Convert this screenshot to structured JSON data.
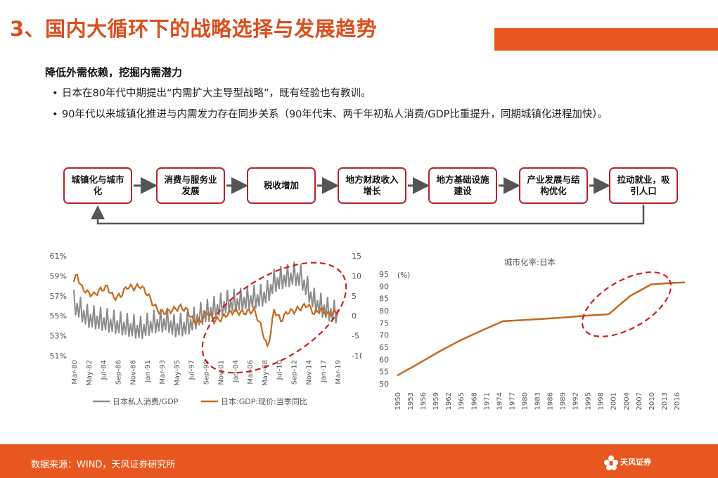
{
  "header": {
    "title": "3、国内大循环下的战略选择与发展趋势",
    "subtitle": "降低外需依赖，挖掘内需潜力",
    "bullets": [
      "日本在80年代中期提出“内需扩大主导型战略”，既有经验也有教训。",
      "90年代以来城镇化推进与内需发力存在同步关系（90年代末、两千年初私人消费/GDP比重提升，同期城镇化进程加快）。"
    ],
    "bullet_marker": "•"
  },
  "flow": {
    "steps": [
      "城镇化与城市化",
      "消费与服务业发展",
      "税收增加",
      "地方财政收入增长",
      "地方基础设施建设",
      "产业发展与结构优化",
      "拉动就业，吸引人口"
    ]
  },
  "footer": {
    "source": "数据来源：WIND，天风证券研究所",
    "logo_text": "天风证券",
    "colors": {
      "brand": "#e8571f"
    }
  },
  "chart_data": [
    {
      "type": "line",
      "x_tick_labels": [
        "Mar-80",
        "May-82",
        "Jul-84",
        "Sep-86",
        "Nov-88",
        "Jan-91",
        "Mar-93",
        "May-95",
        "Jul-97",
        "Sep-99",
        "Nov-01",
        "Jan-04",
        "Mar-06",
        "May-08",
        "Jul-10",
        "Sep-12",
        "Nov-14",
        "Jan-17",
        "Mar-19"
      ],
      "y_left": {
        "ticks": [
          "61%",
          "59%",
          "57%",
          "55%",
          "53%",
          "51%"
        ],
        "range": [
          51,
          61
        ]
      },
      "y_right": {
        "ticks": [
          "15",
          "10",
          "5",
          "0",
          "-5",
          "-10"
        ],
        "range": [
          -10,
          15
        ]
      },
      "series": [
        {
          "name": "日本私人消费/GDP",
          "axis": "left",
          "color": "#8c8c8c",
          "t": [
            1980,
            1982,
            1984,
            1986,
            1988,
            1990,
            1992,
            1994,
            1995,
            1997,
            1999,
            2001,
            2003,
            2005,
            2007,
            2008,
            2009,
            2010,
            2011,
            2012,
            2013,
            2014,
            2015,
            2016,
            2017,
            2018,
            2019
          ],
          "values": [
            56.2,
            54.8,
            54.5,
            54.2,
            53.9,
            53.6,
            54.2,
            54.4,
            53.8,
            54.0,
            55.0,
            55.6,
            56.2,
            56.4,
            56.7,
            56.8,
            57.2,
            58.3,
            58.6,
            58.8,
            59.0,
            58.8,
            57.6,
            56.4,
            55.9,
            55.5,
            55.2
          ],
          "seasonal_amplitude": 1.4
        },
        {
          "name": "日本:GDP:现价:当季同比",
          "axis": "right",
          "color": "#c46a1c",
          "t": [
            1980,
            1980.5,
            1981,
            1982,
            1983,
            1984,
            1985,
            1986,
            1987,
            1988,
            1989,
            1990,
            1991,
            1992,
            1993,
            1994,
            1995,
            1996,
            1997,
            1998,
            1999,
            2000,
            2001,
            2002,
            2003,
            2004,
            2005,
            2006,
            2007,
            2008,
            2009,
            2009.5,
            2010,
            2011,
            2012,
            2013,
            2014,
            2015,
            2016,
            2017,
            2018,
            2019
          ],
          "values": [
            8.5,
            10.5,
            7.5,
            5.8,
            5.2,
            6.5,
            7.2,
            4.5,
            5.0,
            7.3,
            7.0,
            7.5,
            5.5,
            2.6,
            0.8,
            1.0,
            1.6,
            2.2,
            1.3,
            -1.5,
            -1.3,
            1.0,
            -1.2,
            -0.8,
            0.5,
            1.2,
            0.8,
            0.9,
            1.4,
            -2.5,
            -8.0,
            -4.0,
            1.5,
            -1.2,
            1.0,
            1.2,
            2.0,
            2.8,
            0.6,
            1.6,
            0.4,
            0.8
          ]
        }
      ]
    },
    {
      "type": "line",
      "title": "城市化率:日本",
      "unit_label": "(%)",
      "y_ticks": [
        "95",
        "90",
        "85",
        "80",
        "75",
        "70",
        "65",
        "60",
        "55",
        "50"
      ],
      "ylim": [
        50,
        95
      ],
      "x_tick_labels": [
        "1950",
        "1953",
        "1956",
        "1959",
        "1962",
        "1965",
        "1968",
        "1971",
        "1974",
        "1977",
        "1980",
        "1983",
        "1986",
        "1989",
        "1992",
        "1995",
        "1998",
        "2001",
        "2004",
        "2007",
        "2010",
        "2013",
        "2016"
      ],
      "series": [
        {
          "name": "城市化率:日本",
          "color": "#c46a1c",
          "x": [
            1950,
            1955,
            1960,
            1965,
            1970,
            1975,
            1980,
            1985,
            1990,
            1995,
            1999,
            2000,
            2005,
            2010,
            2015,
            2018
          ],
          "values": [
            53.4,
            58.3,
            63.3,
            67.9,
            71.9,
            75.7,
            76.2,
            76.7,
            77.3,
            78.0,
            78.4,
            78.6,
            86.0,
            90.8,
            91.4,
            91.6
          ]
        }
      ]
    }
  ]
}
